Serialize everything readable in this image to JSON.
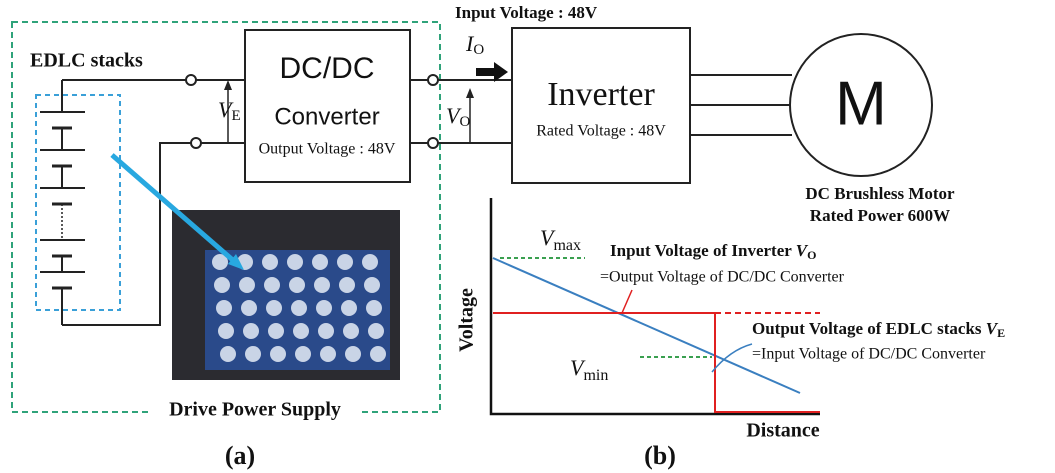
{
  "diagram_a": {
    "edlc_label": "EDLC stacks",
    "converter": {
      "line1": "DC/DC",
      "line2": "Converter",
      "output": "Output Voltage : 48V"
    },
    "input_voltage": "Input Voltage : 48V",
    "current_out": {
      "symbol": "I",
      "subscript": "O"
    },
    "voltage_edlc": {
      "symbol": "V",
      "subscript": "E"
    },
    "voltage_out": {
      "symbol": "V",
      "subscript": "O"
    },
    "inverter": {
      "title": "Inverter",
      "rated": "Rated Voltage : 48V"
    },
    "motor": {
      "symbol": "M",
      "line1": "DC Brushless Motor",
      "line2": "Rated Power 600W"
    },
    "supply_label": "Drive Power Supply",
    "caption": "(a)"
  },
  "diagram_b": {
    "y_label": "Voltage",
    "x_label": "Distance",
    "vmax": {
      "symbol": "V",
      "subscript": "max"
    },
    "vmin": {
      "symbol": "V",
      "subscript": "min"
    },
    "inverter_note": {
      "line1": "Input Voltage of Inverter ",
      "symbol": "V",
      "subscript": "O",
      "line2": "=Output Voltage of DC/DC Converter"
    },
    "edlc_note": {
      "line1": "Output Voltage of EDLC stacks ",
      "symbol": "V",
      "subscript": "E",
      "line2": "=Input Voltage of DC/DC Converter"
    },
    "caption": "(b)"
  }
}
